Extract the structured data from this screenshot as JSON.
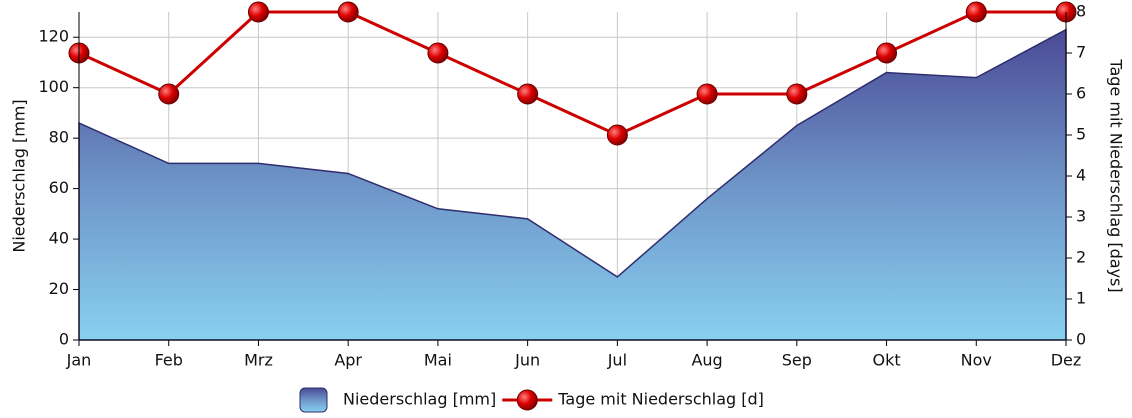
{
  "chart_data": {
    "type": "combo",
    "categories": [
      "Jan",
      "Feb",
      "Mrz",
      "Apr",
      "Mai",
      "Jun",
      "Jul",
      "Aug",
      "Sep",
      "Okt",
      "Nov",
      "Dez"
    ],
    "series": [
      {
        "name": "Niederschlag [mm]",
        "type": "area",
        "color": "#2e2e6e",
        "values": [
          86,
          70,
          70,
          66,
          52,
          48,
          25,
          56,
          85,
          106,
          104,
          123
        ]
      },
      {
        "name": "Tage mit Niederschlag [d]",
        "type": "line",
        "axis": "y2",
        "color": "#cc0000",
        "values": [
          7,
          6,
          8,
          8,
          7,
          6,
          5,
          6,
          6,
          7,
          8,
          8
        ]
      }
    ],
    "ylabel": "Niederschlag [mm]",
    "y2label": "Tage mit Niederschlag [days]",
    "ylim": [
      0,
      130
    ],
    "yticks": [
      0,
      20,
      40,
      60,
      80,
      100,
      120
    ],
    "y2lim": [
      0,
      8
    ],
    "y2ticks": [
      0,
      1,
      2,
      3,
      4,
      5,
      6,
      7,
      8
    ],
    "grid": true,
    "legend": "bottom"
  }
}
